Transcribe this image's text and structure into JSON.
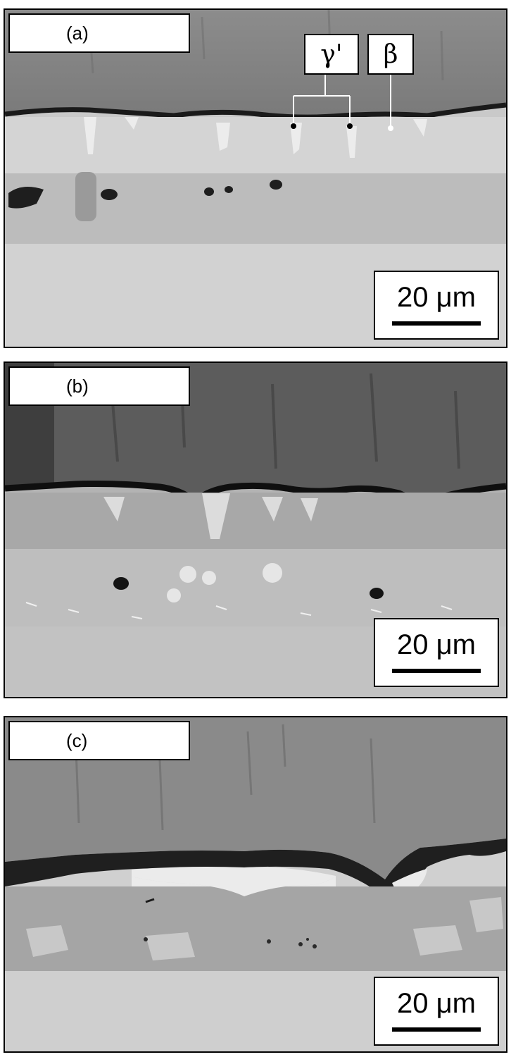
{
  "panels": [
    {
      "label": "(a)",
      "scale_bar": "20 μm"
    },
    {
      "label": "(b)",
      "scale_bar": "20 μm"
    },
    {
      "label": "(c)",
      "scale_bar": "20 μm"
    }
  ],
  "annotations": {
    "gamma_prime": "γ'",
    "beta": "β"
  }
}
